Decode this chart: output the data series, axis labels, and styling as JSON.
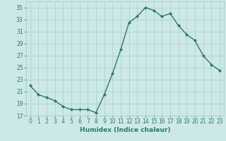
{
  "x": [
    0,
    1,
    2,
    3,
    4,
    5,
    6,
    7,
    8,
    9,
    10,
    11,
    12,
    13,
    14,
    15,
    16,
    17,
    18,
    19,
    20,
    21,
    22,
    23
  ],
  "y": [
    22,
    20.5,
    20,
    19.5,
    18.5,
    18,
    18,
    18,
    17.5,
    20.5,
    24,
    28,
    32.5,
    33.5,
    35,
    34.5,
    33.5,
    34,
    32,
    30.5,
    29.5,
    27,
    25.5,
    24.5
  ],
  "line_color": "#2d7a6a",
  "marker": "D",
  "marker_size": 2.0,
  "bg_color": "#cce8e8",
  "grid_color": "#aacccc",
  "xlabel": "Humidex (Indice chaleur)",
  "xlim": [
    -0.5,
    23.5
  ],
  "ylim": [
    17,
    36
  ],
  "yticks": [
    17,
    19,
    21,
    23,
    25,
    27,
    29,
    31,
    33,
    35
  ],
  "xticks": [
    0,
    1,
    2,
    3,
    4,
    5,
    6,
    7,
    8,
    9,
    10,
    11,
    12,
    13,
    14,
    15,
    16,
    17,
    18,
    19,
    20,
    21,
    22,
    23
  ],
  "tick_color": "#2d7a6a",
  "tick_fontsize": 5.5,
  "xlabel_fontsize": 6.5,
  "linewidth": 1.0
}
